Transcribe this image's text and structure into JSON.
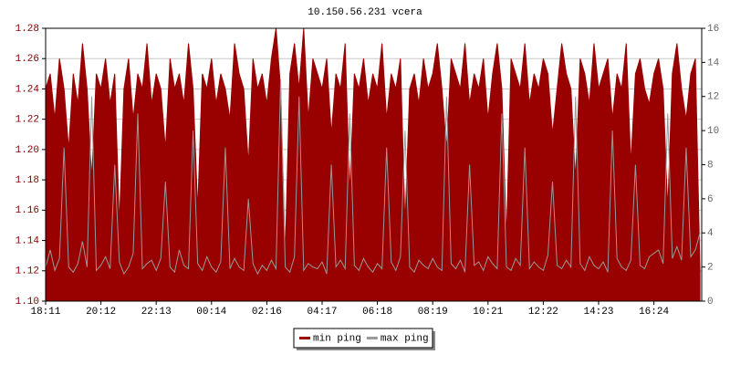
{
  "chart_data": {
    "type": "line",
    "title": "10.150.56.231 vcera",
    "categories": [
      "18:11",
      null,
      null,
      null,
      null,
      null,
      null,
      null,
      null,
      null,
      null,
      null,
      "20:12",
      null,
      null,
      null,
      null,
      null,
      null,
      null,
      null,
      null,
      null,
      null,
      "22:13",
      null,
      null,
      null,
      null,
      null,
      null,
      null,
      null,
      null,
      null,
      null,
      "00:14",
      null,
      null,
      null,
      null,
      null,
      null,
      null,
      null,
      null,
      null,
      null,
      "02:16",
      null,
      null,
      null,
      null,
      null,
      null,
      null,
      null,
      null,
      null,
      null,
      "04:17",
      null,
      null,
      null,
      null,
      null,
      null,
      null,
      null,
      null,
      null,
      null,
      "06:18",
      null,
      null,
      null,
      null,
      null,
      null,
      null,
      null,
      null,
      null,
      null,
      "08:19",
      null,
      null,
      null,
      null,
      null,
      null,
      null,
      null,
      null,
      null,
      null,
      "10:21",
      null,
      null,
      null,
      null,
      null,
      null,
      null,
      null,
      null,
      null,
      null,
      "12:22",
      null,
      null,
      null,
      null,
      null,
      null,
      null,
      null,
      null,
      null,
      null,
      "14:23",
      null,
      null,
      null,
      null,
      null,
      null,
      null,
      null,
      null,
      null,
      null,
      "16:24",
      null,
      null,
      null,
      null,
      null,
      null,
      null,
      null,
      null,
      null
    ],
    "series": [
      {
        "name": "min ping",
        "color": "#990000",
        "fill": true,
        "values": [
          1.24,
          1.25,
          1.22,
          1.26,
          1.24,
          1.2,
          1.25,
          1.23,
          1.27,
          1.24,
          1.18,
          1.25,
          1.24,
          1.26,
          1.23,
          1.25,
          1.15,
          1.24,
          1.26,
          1.22,
          1.25,
          1.24,
          1.27,
          1.23,
          1.25,
          1.24,
          1.2,
          1.26,
          1.24,
          1.25,
          1.23,
          1.27,
          1.24,
          1.16,
          1.25,
          1.24,
          1.26,
          1.23,
          1.25,
          1.24,
          1.22,
          1.27,
          1.25,
          1.24,
          1.19,
          1.26,
          1.24,
          1.25,
          1.23,
          1.26,
          1.28,
          1.24,
          1.13,
          1.25,
          1.27,
          1.24,
          1.28,
          1.22,
          1.26,
          1.25,
          1.24,
          1.26,
          1.21,
          1.25,
          1.24,
          1.27,
          1.17,
          1.25,
          1.24,
          1.26,
          1.23,
          1.25,
          1.24,
          1.27,
          1.22,
          1.25,
          1.24,
          1.26,
          1.15,
          1.24,
          1.25,
          1.23,
          1.26,
          1.24,
          1.25,
          1.27,
          1.24,
          1.2,
          1.26,
          1.25,
          1.24,
          1.27,
          1.23,
          1.25,
          1.24,
          1.26,
          1.22,
          1.25,
          1.27,
          1.24,
          1.14,
          1.26,
          1.25,
          1.24,
          1.27,
          1.23,
          1.25,
          1.24,
          1.26,
          1.25,
          1.21,
          1.24,
          1.27,
          1.25,
          1.24,
          1.18,
          1.26,
          1.25,
          1.23,
          1.27,
          1.24,
          1.25,
          1.26,
          1.22,
          1.25,
          1.24,
          1.27,
          1.19,
          1.25,
          1.26,
          1.24,
          1.23,
          1.25,
          1.26,
          1.24,
          1.16,
          1.25,
          1.27,
          1.24,
          1.22,
          1.25,
          1.26,
          1.12
        ]
      },
      {
        "name": "max ping",
        "color": "#999999",
        "axis": "y2",
        "values": [
          2,
          3,
          1.8,
          2.5,
          9,
          2,
          1.7,
          2.2,
          3.5,
          2,
          12,
          1.8,
          2.1,
          2.6,
          1.9,
          8,
          2.3,
          1.6,
          2,
          2.8,
          11,
          1.9,
          2.2,
          2.4,
          1.8,
          2.5,
          7,
          2,
          1.7,
          3,
          2.1,
          1.9,
          10,
          2.2,
          1.8,
          2.6,
          2,
          1.7,
          2.3,
          9,
          1.9,
          2.5,
          2,
          1.8,
          6,
          2.2,
          1.6,
          2.1,
          1.8,
          2.4,
          1.9,
          13,
          2,
          1.7,
          2.6,
          12,
          1.8,
          2.2,
          2,
          1.9,
          2.3,
          1.6,
          8,
          2,
          2.4,
          1.9,
          11,
          2.1,
          1.8,
          2.5,
          2,
          1.7,
          2.2,
          1.9,
          9,
          2.3,
          1.8,
          2.6,
          10,
          2,
          1.7,
          2.4,
          2.1,
          1.9,
          2.5,
          2,
          1.8,
          12,
          2.2,
          1.9,
          2.4,
          1.7,
          8,
          2.1,
          2.3,
          1.8,
          2.6,
          2.2,
          1.9,
          11,
          2,
          1.8,
          2.5,
          2.1,
          9,
          1.9,
          2.3,
          2,
          1.8,
          2.7,
          7,
          2.1,
          1.9,
          2.4,
          2,
          12,
          2.2,
          1.8,
          2.6,
          2.1,
          1.9,
          2.3,
          1.7,
          10,
          2.5,
          2,
          1.8,
          2.4,
          8,
          2.1,
          1.9,
          2.6,
          2.8,
          3,
          2.2,
          11,
          2.5,
          3.2,
          2.4,
          9,
          2.6,
          3,
          4
        ]
      }
    ],
    "ylim": [
      1.1,
      1.28
    ],
    "yticks": [
      {
        "value": 1.1,
        "label": "1.10"
      },
      1.12,
      1.14,
      1.16,
      1.18,
      {
        "value": 1.2,
        "label": "1.20"
      },
      1.22,
      1.24,
      1.26,
      1.28
    ],
    "y2lim": [
      0,
      16
    ],
    "y2ticks": [
      0,
      2,
      4,
      6,
      8,
      10,
      12,
      14,
      16
    ],
    "grid": true,
    "legend": "bottom"
  }
}
